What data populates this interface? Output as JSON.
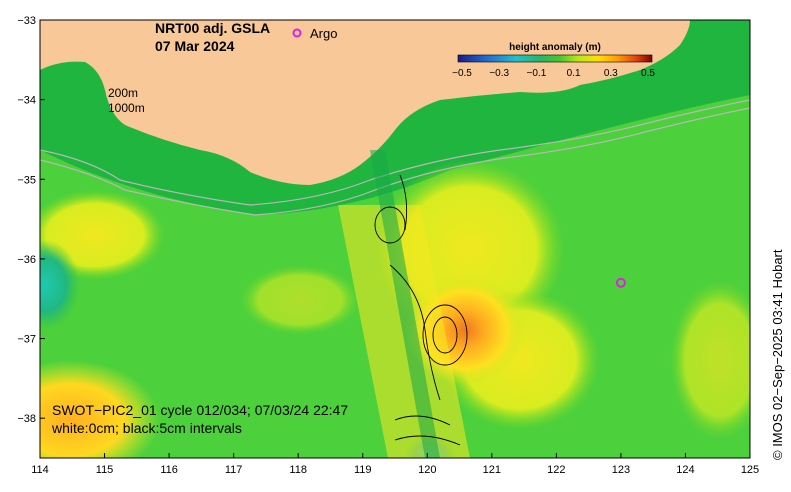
{
  "title": {
    "line1": "NRT00 adj. GSLA",
    "line2": "07 Mar 2024"
  },
  "legend": {
    "argo_label": "Argo",
    "argo_color": "#e020e0"
  },
  "isobaths": {
    "label_200": "200m",
    "label_1000": "1000m"
  },
  "colorbar": {
    "title": "height anomaly (m)",
    "ticks": [
      "−0.5",
      "−0.3",
      "−0.1",
      "0.1",
      "0.3",
      "0.5"
    ],
    "colors": [
      "#2a2aa8",
      "#1f7fd8",
      "#21b8c8",
      "#20b878",
      "#10c040",
      "#60d820",
      "#c0e810",
      "#ffe000",
      "#ffa800",
      "#f06010",
      "#c01818",
      "#800000"
    ]
  },
  "info": {
    "line1": "SWOT−PIC2_01 cycle 012/034; 07/03/24 22:47",
    "line2": "white:0cm; black:5cm intervals"
  },
  "credit": "© IMOS 02−Sep−2025 03:41 Hobart",
  "axes": {
    "x_ticks": [
      "114",
      "115",
      "116",
      "117",
      "118",
      "119",
      "120",
      "121",
      "122",
      "123",
      "124",
      "125"
    ],
    "y_ticks": [
      "−33",
      "−34",
      "−35",
      "−36",
      "−37",
      "−38"
    ]
  },
  "map_data": {
    "lon_range": [
      114,
      125
    ],
    "lat_range": [
      -38.5,
      -33
    ],
    "argo_float": {
      "lon": 123.0,
      "lat": -36.3
    }
  },
  "colors": {
    "land": "#f8c898",
    "ocean_base": "#4cd03c",
    "argo": "#e020e0"
  }
}
